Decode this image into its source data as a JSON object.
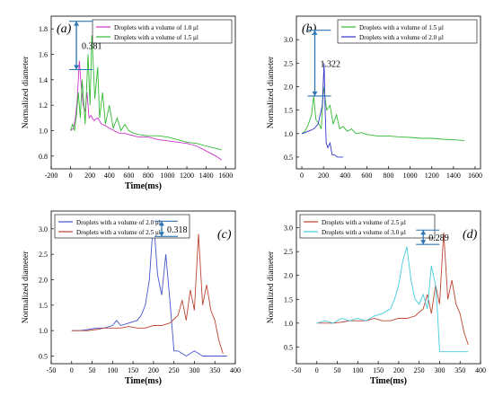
{
  "chart_data": [
    {
      "type": "line",
      "panel_label": "(a)",
      "xlabel": "Time(ms)",
      "ylabel": "Normalized diameter",
      "xlim": [
        -200,
        1700
      ],
      "ylim": [
        0.7,
        1.9
      ],
      "xticks": [
        -200,
        0,
        200,
        400,
        600,
        800,
        1000,
        1200,
        1400,
        1600
      ],
      "yticks": [
        0.8,
        1.0,
        1.2,
        1.4,
        1.6,
        1.8
      ],
      "legend": "top-right",
      "annotation": {
        "text": "0.381",
        "x": 60,
        "y_top": 1.86,
        "y_bottom": 1.48
      },
      "series": [
        {
          "name": "Droplets with a volume of 1.0 μl",
          "color": "#cc33cc",
          "x": [
            0,
            30,
            50,
            70,
            90,
            110,
            130,
            150,
            170,
            190,
            210,
            240,
            280,
            320,
            360,
            400,
            450,
            500,
            550,
            600,
            650,
            700,
            800,
            900,
            1000,
            1100,
            1200,
            1300,
            1400,
            1500,
            1560
          ],
          "y": [
            1.0,
            1.02,
            1.1,
            1.25,
            1.55,
            1.35,
            1.2,
            1.15,
            1.3,
            1.1,
            1.12,
            1.08,
            1.1,
            1.05,
            1.04,
            1.02,
            1.0,
            0.98,
            0.98,
            0.97,
            0.96,
            0.95,
            0.95,
            0.93,
            0.92,
            0.91,
            0.9,
            0.88,
            0.84,
            0.8,
            0.77
          ]
        },
        {
          "name": "Droplets with a volume of 1.5 μl",
          "color": "#33bb33",
          "x": [
            0,
            20,
            40,
            60,
            80,
            100,
            120,
            150,
            180,
            200,
            220,
            250,
            280,
            300,
            330,
            360,
            400,
            440,
            480,
            520,
            560,
            600,
            650,
            700,
            800,
            900,
            1000,
            1100,
            1200,
            1300,
            1400,
            1500,
            1560
          ],
          "y": [
            1.0,
            1.05,
            1.0,
            1.12,
            1.3,
            1.1,
            1.4,
            1.05,
            1.6,
            1.2,
            1.75,
            1.25,
            1.5,
            1.1,
            1.3,
            1.05,
            1.2,
            1.02,
            1.1,
            1.0,
            1.05,
            1.0,
            0.98,
            0.97,
            0.96,
            0.96,
            0.95,
            0.93,
            0.91,
            0.9,
            0.88,
            0.86,
            0.85
          ]
        }
      ]
    },
    {
      "type": "line",
      "panel_label": "(b)",
      "xlabel": "",
      "ylabel": "Normalized diameter",
      "xlim": [
        -50,
        1650
      ],
      "ylim": [
        0.25,
        3.5
      ],
      "xticks": [
        0,
        200,
        400,
        600,
        800,
        1000,
        1200,
        1400,
        1600
      ],
      "yticks": [
        0.5,
        1.0,
        1.5,
        2.0,
        2.5,
        3.0
      ],
      "legend": "top-right",
      "annotation": {
        "text": "1.322",
        "x": 120,
        "y_top": 3.2,
        "y_bottom": 1.8
      },
      "series": [
        {
          "name": "Droplets with a volume of 1.5 μl",
          "color": "#33bb33",
          "x": [
            0,
            30,
            60,
            90,
            110,
            130,
            160,
            180,
            200,
            230,
            260,
            290,
            320,
            350,
            380,
            420,
            460,
            500,
            550,
            600,
            700,
            800,
            900,
            1000,
            1100,
            1200,
            1300,
            1400,
            1500
          ],
          "y": [
            1.0,
            1.05,
            1.2,
            1.4,
            1.8,
            1.3,
            1.2,
            1.1,
            2.0,
            1.5,
            1.6,
            1.2,
            1.4,
            1.1,
            1.15,
            1.05,
            1.1,
            1.0,
            1.02,
            0.98,
            0.95,
            0.95,
            0.93,
            0.92,
            0.9,
            0.9,
            0.88,
            0.87,
            0.85
          ]
        },
        {
          "name": "Droplets with a volume of 2.0 μl",
          "color": "#3333cc",
          "x": [
            0,
            30,
            60,
            90,
            110,
            130,
            150,
            170,
            190,
            205,
            215,
            225,
            240,
            260,
            280,
            300,
            330,
            360,
            380
          ],
          "y": [
            1.0,
            1.02,
            1.05,
            1.08,
            1.1,
            1.15,
            1.2,
            1.4,
            1.6,
            2.5,
            1.5,
            0.8,
            0.7,
            0.8,
            0.55,
            0.55,
            0.5,
            0.5,
            0.5
          ]
        }
      ]
    },
    {
      "type": "line",
      "panel_label": "(c)",
      "xlabel": "Time(ms)",
      "ylabel": "Normalized diameter",
      "xlim": [
        -50,
        400
      ],
      "ylim": [
        0.35,
        3.35
      ],
      "xticks": [
        -50,
        0,
        50,
        100,
        150,
        200,
        250,
        300,
        350,
        400
      ],
      "yticks": [
        0.5,
        1.0,
        1.5,
        2.0,
        2.5,
        3.0
      ],
      "legend": "top-left",
      "annotation": {
        "text": "0.318",
        "x": 220,
        "y_top": 3.15,
        "y_bottom": 2.85
      },
      "series": [
        {
          "name": "Droplets with a volume of 2.0 μl",
          "color": "#4455cc",
          "x": [
            0,
            20,
            40,
            60,
            80,
            100,
            110,
            120,
            140,
            160,
            170,
            180,
            190,
            200,
            210,
            220,
            230,
            240,
            250,
            260,
            280,
            300,
            320,
            340,
            360,
            380
          ],
          "y": [
            1.0,
            1.0,
            1.02,
            1.05,
            1.05,
            1.1,
            1.2,
            1.1,
            1.15,
            1.2,
            1.3,
            1.5,
            2.0,
            3.2,
            2.1,
            1.7,
            2.5,
            1.6,
            0.6,
            0.6,
            0.5,
            0.6,
            0.5,
            0.5,
            0.5,
            0.5
          ]
        },
        {
          "name": "Droplets with a volume of 2.5 μl",
          "color": "#bb4433",
          "x": [
            0,
            20,
            40,
            60,
            80,
            100,
            120,
            140,
            160,
            180,
            200,
            220,
            240,
            260,
            270,
            280,
            290,
            300,
            310,
            320,
            330,
            340,
            350,
            360,
            370
          ],
          "y": [
            1.0,
            1.0,
            1.0,
            1.02,
            1.05,
            1.05,
            1.05,
            1.08,
            1.05,
            1.05,
            1.1,
            1.1,
            1.15,
            1.3,
            1.6,
            1.2,
            1.8,
            1.4,
            2.9,
            1.5,
            1.9,
            1.4,
            1.2,
            0.8,
            0.55
          ]
        }
      ]
    },
    {
      "type": "line",
      "panel_label": "(d)",
      "xlabel": "Time(ms)",
      "ylabel": "Normalized diameter",
      "xlim": [
        -50,
        400
      ],
      "ylim": [
        0.15,
        3.35
      ],
      "xticks": [
        -50,
        0,
        50,
        100,
        150,
        200,
        250,
        300,
        350,
        400
      ],
      "yticks": [
        0.0,
        0.5,
        1.0,
        1.5,
        2.0,
        2.5,
        3.0
      ],
      "legend": "top-left",
      "annotation": {
        "text": "0.289",
        "x": 260,
        "y_top": 2.95,
        "y_bottom": 2.65
      },
      "series": [
        {
          "name": "Droplets with a volume of 2.5 μl",
          "color": "#bb4433",
          "x": [
            0,
            20,
            40,
            60,
            80,
            100,
            120,
            140,
            160,
            180,
            200,
            220,
            240,
            260,
            270,
            280,
            290,
            300,
            310,
            320,
            330,
            340,
            350,
            360,
            370
          ],
          "y": [
            1.0,
            1.0,
            1.0,
            1.02,
            1.05,
            1.05,
            1.05,
            1.1,
            1.05,
            1.05,
            1.1,
            1.1,
            1.15,
            1.3,
            1.6,
            1.2,
            1.8,
            1.4,
            2.9,
            1.5,
            1.9,
            1.4,
            1.2,
            0.8,
            0.55
          ]
        },
        {
          "name": "Droplets with a volume of 3.0 μl",
          "color": "#44ccdd",
          "x": [
            0,
            20,
            40,
            60,
            80,
            100,
            120,
            140,
            160,
            180,
            190,
            200,
            210,
            220,
            230,
            240,
            250,
            260,
            270,
            280,
            290,
            295,
            300,
            320,
            340,
            360,
            370
          ],
          "y": [
            1.0,
            1.05,
            1.0,
            1.1,
            1.05,
            1.1,
            1.05,
            1.15,
            1.2,
            1.3,
            1.5,
            1.8,
            2.3,
            2.6,
            1.9,
            1.5,
            1.4,
            1.6,
            1.3,
            2.2,
            1.8,
            1.2,
            0.4,
            0.4,
            0.4,
            0.4,
            0.4
          ]
        }
      ]
    }
  ]
}
